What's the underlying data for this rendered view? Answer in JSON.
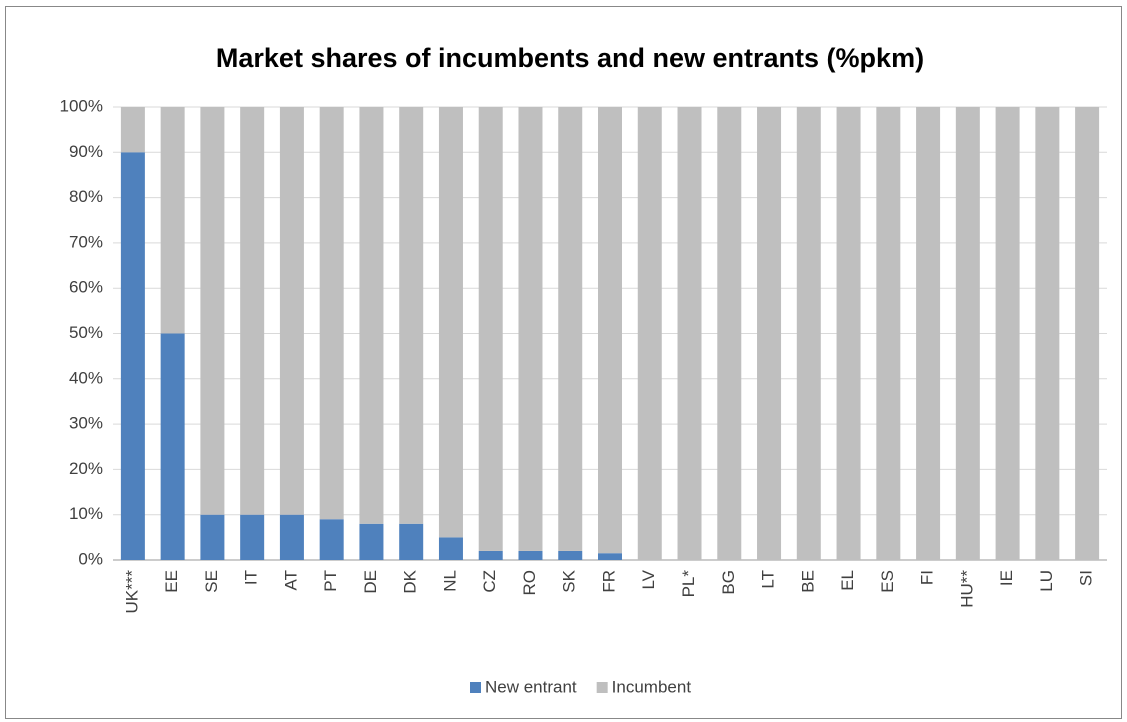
{
  "chart_data": {
    "type": "stacked_bar",
    "title": "Market shares of incumbents and new entrants (%pkm)",
    "categories": [
      "UK***",
      "EE",
      "SE",
      "IT",
      "AT",
      "PT",
      "DE",
      "DK",
      "NL",
      "CZ",
      "RO",
      "SK",
      "FR",
      "LV",
      "PL*",
      "BG",
      "LT",
      "BE",
      "EL",
      "ES",
      "FI",
      "HU**",
      "IE",
      "LU",
      "SI"
    ],
    "series": [
      {
        "name": "New entrant",
        "color": "#4f81bd",
        "values": [
          90,
          50,
          10,
          10,
          10,
          9,
          8,
          8,
          5,
          2,
          2,
          2,
          1.5,
          0,
          0,
          0,
          0,
          0,
          0,
          0,
          0,
          0,
          0,
          0,
          0
        ]
      },
      {
        "name": "Incumbent",
        "color": "#bfbfbf",
        "values": [
          10,
          50,
          90,
          90,
          90,
          91,
          92,
          92,
          95,
          98,
          98,
          98,
          98.5,
          100,
          100,
          100,
          100,
          100,
          100,
          100,
          100,
          100,
          100,
          100,
          100
        ]
      }
    ],
    "ylim": [
      0,
      100
    ],
    "yticks": [
      {
        "value": 0,
        "label": "0%"
      },
      {
        "value": 10,
        "label": "10%"
      },
      {
        "value": 20,
        "label": "20%"
      },
      {
        "value": 30,
        "label": "30%"
      },
      {
        "value": 40,
        "label": "40%"
      },
      {
        "value": 50,
        "label": "50%"
      },
      {
        "value": 60,
        "label": "60%"
      },
      {
        "value": 70,
        "label": "70%"
      },
      {
        "value": 80,
        "label": "80%"
      },
      {
        "value": 90,
        "label": "90%"
      },
      {
        "value": 100,
        "label": "100%"
      }
    ],
    "grid": true,
    "legend": "bottom"
  }
}
